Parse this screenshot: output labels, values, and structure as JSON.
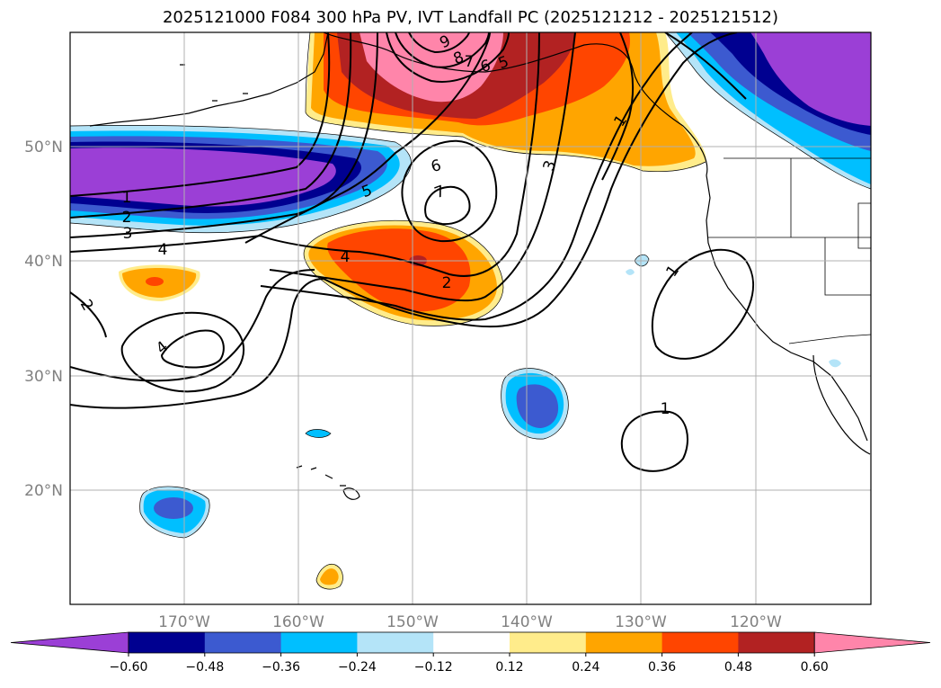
{
  "title": "2025121000 F084 300 hPa PV, IVT Landfall PC (2025121212 - 2025121512)",
  "map": {
    "lon_labels": [
      "170°W",
      "160°W",
      "150°W",
      "140°W",
      "130°W",
      "120°W"
    ],
    "lat_labels": [
      "50°N",
      "40°N",
      "30°N",
      "20°N"
    ],
    "contour_labels": [
      "1",
      "2",
      "3",
      "4",
      "5",
      "6",
      "7",
      "8",
      "9",
      "6",
      "5",
      "7",
      "4",
      "2",
      "3",
      "1",
      "2",
      "4",
      "1",
      "1"
    ]
  },
  "colorbar": {
    "ticks": [
      "−0.60",
      "−0.48",
      "−0.36",
      "−0.24",
      "−0.12",
      "0.12",
      "0.24",
      "0.36",
      "0.48",
      "0.60"
    ],
    "colors": [
      "#9b3fd6",
      "#000090",
      "#3c5ad0",
      "#00bfff",
      "#b4e4f8",
      "#ffffff",
      "#ffec8b",
      "#ffa500",
      "#ff4500",
      "#b22222",
      "#ff85aa"
    ]
  },
  "palette": {
    "purple": "#9b3fd6",
    "navy": "#000090",
    "blue": "#3c5ad0",
    "cyan": "#00bfff",
    "lightblue": "#b4e4f8",
    "yellow": "#ffec8b",
    "orange": "#ffa500",
    "redorange": "#ff4500",
    "darkred": "#b22222",
    "pink": "#ff85aa"
  }
}
